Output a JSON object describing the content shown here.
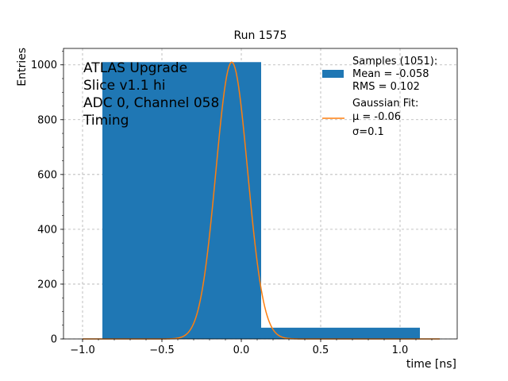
{
  "chart_data": {
    "type": "bar",
    "title": "Run 1575",
    "xlabel": "time [ns]",
    "ylabel": "Entries",
    "xlim": [
      -1.12,
      1.36
    ],
    "ylim": [
      0,
      1060
    ],
    "grid": true,
    "x_ticks": [
      -1.0,
      -0.5,
      0.0,
      0.5,
      1.0
    ],
    "x_tick_labels": [
      "−1.0",
      "−0.5",
      "0.0",
      "0.5",
      "1.0"
    ],
    "y_ticks": [
      0,
      200,
      400,
      600,
      800,
      1000
    ],
    "y_tick_labels": [
      "0",
      "200",
      "400",
      "600",
      "800",
      "1000"
    ],
    "annotation_lines": [
      "ATLAS Upgrade",
      "Slice v1.1 hi",
      "ADC 0, Channel 058",
      "Timing"
    ],
    "legend_position": "top-right",
    "histogram": {
      "name": "Samples (1051):",
      "stats": [
        " Mean = -0.058",
        " RMS = 0.102"
      ],
      "color": "#1f77b4",
      "bins": [
        {
          "x0": -0.875,
          "x1": 0.125,
          "count": 1010
        },
        {
          "x0": 0.125,
          "x1": 1.125,
          "count": 41
        }
      ]
    },
    "fit": {
      "name": "Gaussian Fit:",
      "params": [
        " μ = -0.06",
        " σ=0.1"
      ],
      "color": "#ff7f0e",
      "mu": -0.06,
      "sigma": 0.1,
      "amplitude": 1010,
      "x_range": [
        -1.0,
        1.25
      ]
    }
  }
}
